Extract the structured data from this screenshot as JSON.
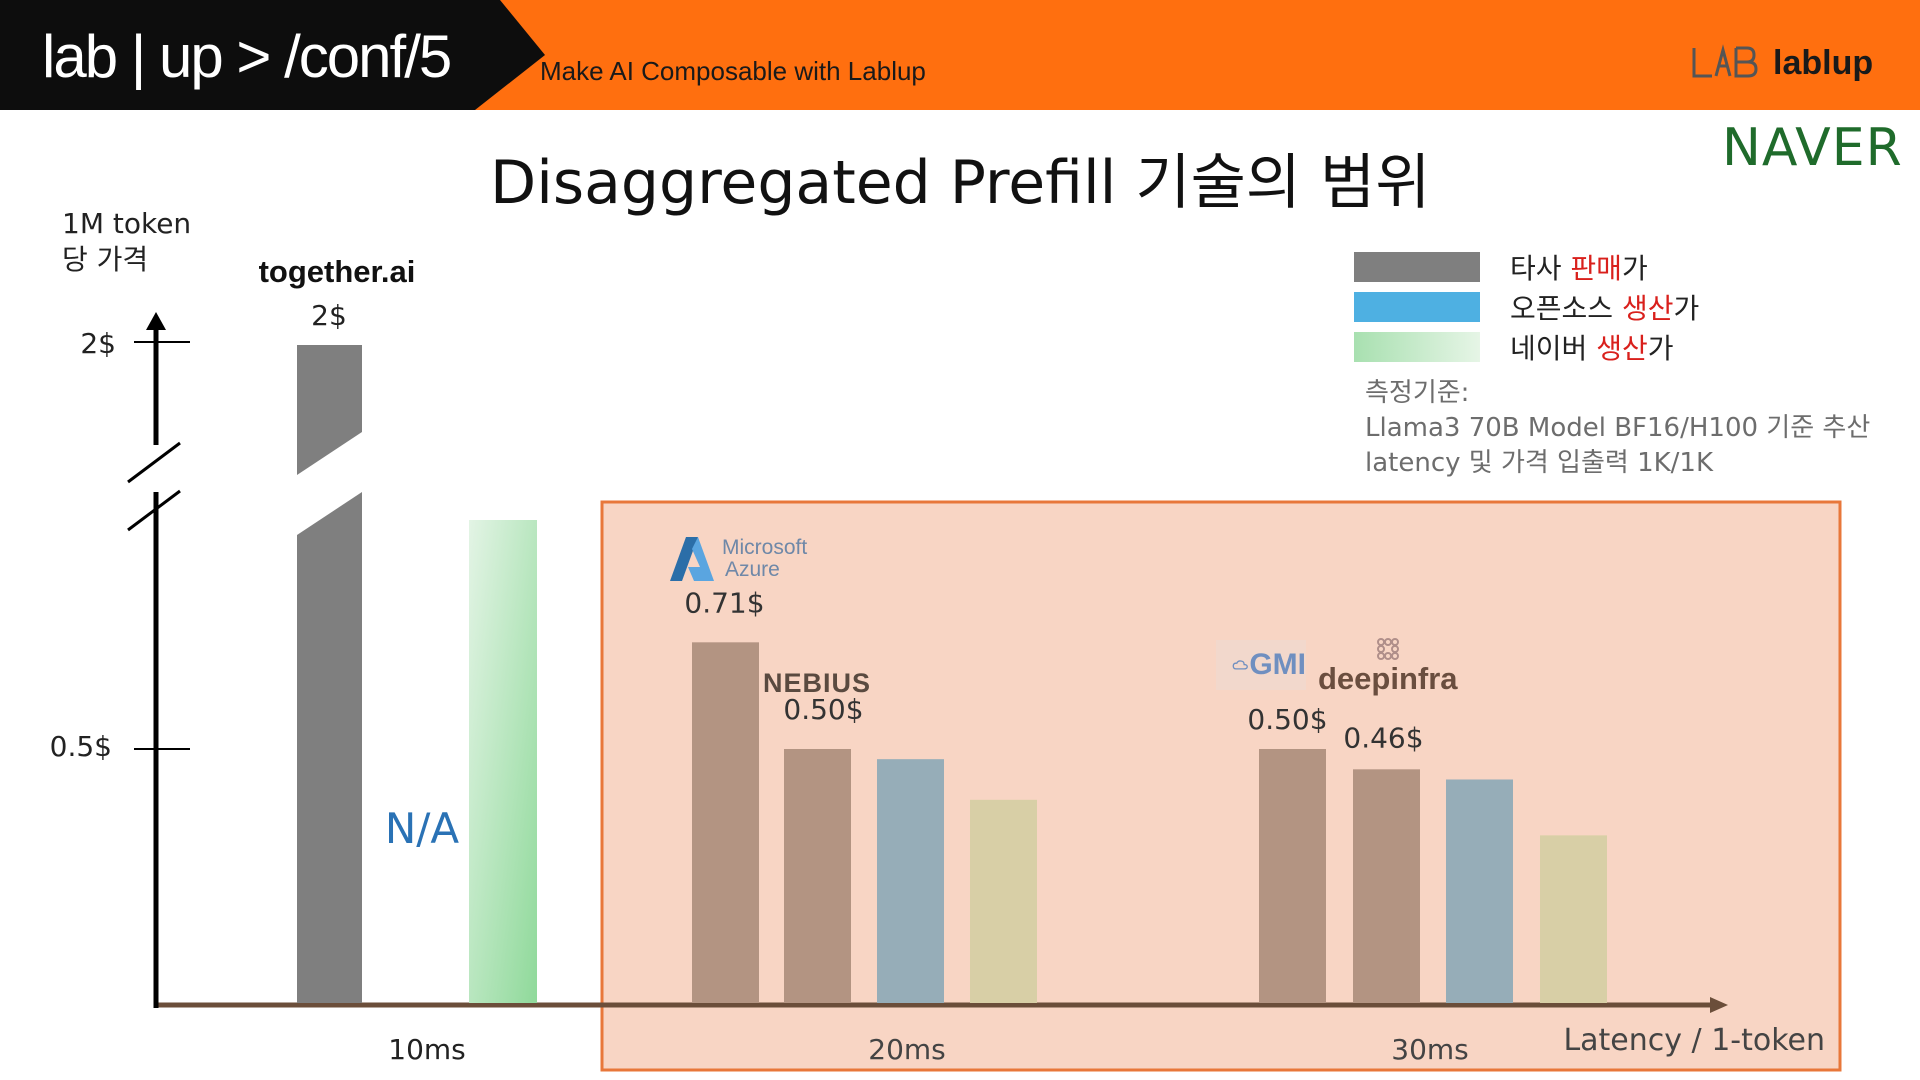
{
  "header": {
    "event": "lab | up > /conf/5",
    "tagline": "Make AI Composable with Lablup",
    "brand": "lablup"
  },
  "sponsor": "NAVER",
  "title": "Disaggregated Prefill 기술의 범위",
  "chart_data": {
    "type": "bar",
    "title": "Disaggregated Prefill 기술의 범위",
    "ylabel": [
      "1M token",
      "당 가격"
    ],
    "xlabel": "Latency / 1-token",
    "x_ticks": [
      "10ms",
      "20ms",
      "30ms"
    ],
    "y_ticks": [
      "2$",
      "0.5$"
    ],
    "axis_break": true,
    "legend_placement": "top-right",
    "legend": [
      {
        "key": "other",
        "parts": [
          {
            "text": "타사 ",
            "hl": false
          },
          {
            "text": "판매",
            "hl": true
          },
          {
            "text": "가",
            "hl": false
          }
        ],
        "color": "#7f7f7f"
      },
      {
        "key": "open",
        "parts": [
          {
            "text": "오픈소스 ",
            "hl": false
          },
          {
            "text": "생산",
            "hl": true
          },
          {
            "text": "가",
            "hl": false
          }
        ],
        "color": "#4eb0e2"
      },
      {
        "key": "naver",
        "parts": [
          {
            "text": "네이버 ",
            "hl": false
          },
          {
            "text": "생산",
            "hl": true
          },
          {
            "text": "가",
            "hl": false
          }
        ],
        "color": "#a8e0b0"
      }
    ],
    "measurement_note": [
      "측정기준:",
      "Llama3 70B Model BF16/H100 기준 추산",
      "latency 및 가격 입출력 1K/1K"
    ],
    "highlight_region": "20ms–30ms",
    "groups": [
      {
        "latency": "10ms",
        "bars": [
          {
            "series": "other",
            "provider": "together.ai",
            "value": 2,
            "label": "2$"
          },
          {
            "series": "naver",
            "value": null,
            "na_label": "N/A"
          }
        ]
      },
      {
        "latency": "20ms",
        "bars": [
          {
            "series": "other",
            "provider": "Microsoft Azure",
            "value": 0.71,
            "label": "0.71$"
          },
          {
            "series": "other",
            "provider": "NEBIUS",
            "value": 0.5,
            "label": "0.50$"
          },
          {
            "series": "open",
            "value": 0.48
          },
          {
            "series": "naver",
            "value": 0.4
          }
        ]
      },
      {
        "latency": "30ms",
        "bars": [
          {
            "series": "other",
            "provider": "GMI",
            "value": 0.5,
            "label": "0.50$"
          },
          {
            "series": "other",
            "provider": "deepinfra",
            "value": 0.46,
            "label": "0.46$"
          },
          {
            "series": "open",
            "value": 0.44
          },
          {
            "series": "naver",
            "value": 0.33
          }
        ]
      }
    ],
    "providers": {
      "azure": [
        "Microsoft",
        "Azure"
      ],
      "nebius": "NEBIUS",
      "gmi": "GMI",
      "deepinfra": "deepinfra"
    }
  }
}
